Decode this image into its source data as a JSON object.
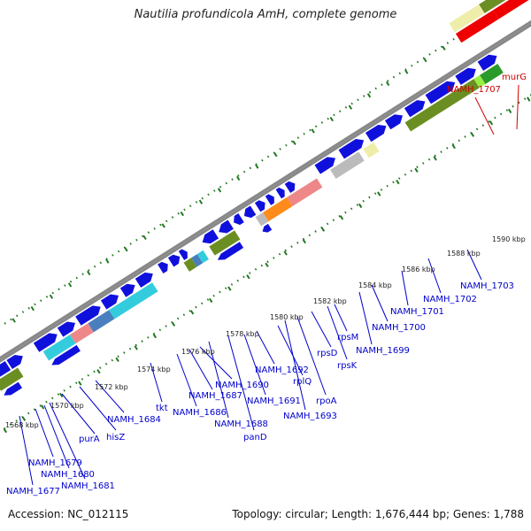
{
  "title": "Nautilia profundicola AmH, complete genome",
  "footer": {
    "accession": "Accession: NC_012115",
    "topology": "Topology: circular; Length: 1,676,444 bp; Genes: 1,788"
  },
  "colors": {
    "forward_cds": "#1010dd",
    "reverse_cds": "#1010dd",
    "label_blue": "#0000cc",
    "label_red": "#cc0000",
    "backbone": "#888888",
    "tick_green": "#227722",
    "cog_olive": "#6b8e23",
    "cog_cyan": "#33ccdd",
    "cog_pink": "#ee8888",
    "cog_orange": "#ff8c1a",
    "cog_gray": "#bbbbbb",
    "cog_khaki": "#eeeeaa",
    "cog_red": "#ee0000",
    "cog_steel": "#4a7fbf",
    "cog_green": "#2a9a2a",
    "cog_lime": "#99ee44"
  },
  "scale": [
    "1568 kbp",
    "1570 kbp",
    "1572 kbp",
    "1574 kbp",
    "1576 kbp",
    "1578 kbp",
    "1580 kbp",
    "1582 kbp",
    "1584 kbp",
    "1586 kbp",
    "1588 kbp",
    "1590 kbp"
  ],
  "labels": [
    "NAMH_1677",
    "NAMH_1679",
    "NAMH_1680",
    "NAMH_1681",
    "purA",
    "hisZ",
    "NAMH_1684",
    "tkt",
    "NAMH_1686",
    "NAMH_1687",
    "NAMH_1688",
    "NAMH_1690",
    "panD",
    "NAMH_1691",
    "NAMH_1692",
    "rplQ",
    "NAMH_1693",
    "rpoA",
    "rpsD",
    "rpsK",
    "rpsM",
    "NAMH_1699",
    "NAMH_1700",
    "NAMH_1701",
    "NAMH_1702",
    "NAMH_1703"
  ],
  "red_labels": [
    "NAMH_1707",
    "murG"
  ]
}
